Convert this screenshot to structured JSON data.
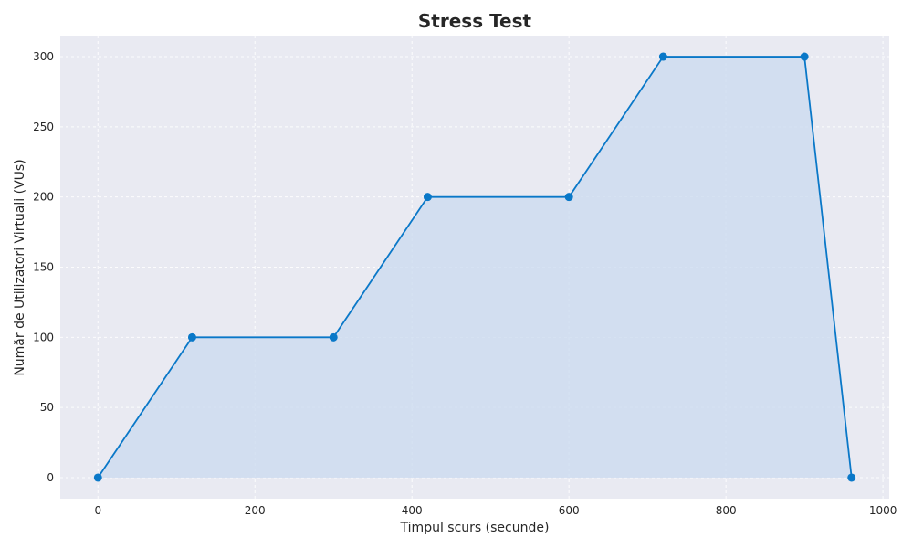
{
  "chart_data": {
    "type": "area",
    "title": "Stress Test",
    "xlabel": "Timpul scurs (secunde)",
    "ylabel": "Număr de Utilizatori Virtuali (VUs)",
    "x": [
      0,
      120,
      300,
      420,
      600,
      720,
      900,
      960
    ],
    "series": [
      {
        "values": [
          0,
          100,
          100,
          200,
          200,
          300,
          300,
          0
        ]
      }
    ],
    "xlim": [
      -48,
      1008
    ],
    "ylim": [
      -15,
      315
    ],
    "xticks": [
      0,
      200,
      400,
      600,
      800,
      1000
    ],
    "yticks": [
      0,
      50,
      100,
      150,
      200,
      250,
      300
    ],
    "grid": true,
    "colors": {
      "line": "#0a78c8",
      "fill": "#c9daef",
      "background": "#e9eaf2"
    }
  }
}
